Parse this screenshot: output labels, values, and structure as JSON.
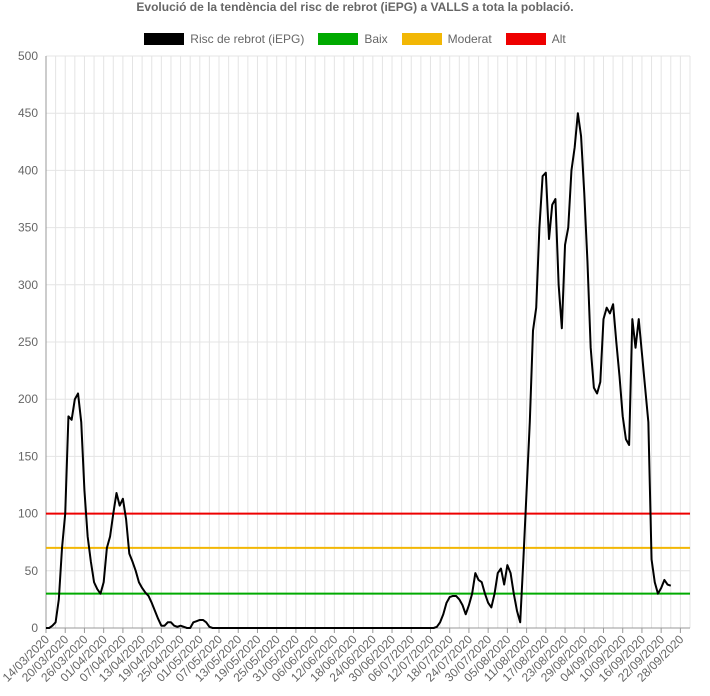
{
  "chart_data": {
    "type": "line",
    "title": "Evolució de la tendència del risc de rebrot (iEPG) a VALLS a tota la població.",
    "xlabel": "",
    "ylabel": "",
    "ylim": [
      0,
      500
    ],
    "yticks": [
      0,
      50,
      100,
      150,
      200,
      250,
      300,
      350,
      400,
      450,
      500
    ],
    "grid": true,
    "legend_position": "top",
    "x_tick_labels": [
      "14/03/2020",
      "20/03/2020",
      "26/03/2020",
      "01/04/2020",
      "07/04/2020",
      "13/04/2020",
      "19/04/2020",
      "25/04/2020",
      "01/05/2020",
      "07/05/2020",
      "13/05/2020",
      "19/05/2020",
      "25/05/2020",
      "31/05/2020",
      "06/06/2020",
      "12/06/2020",
      "18/06/2020",
      "24/06/2020",
      "30/06/2020",
      "06/07/2020",
      "12/07/2020",
      "18/07/2020",
      "24/07/2020",
      "30/07/2020",
      "05/08/2020",
      "11/08/2020",
      "17/08/2020",
      "23/08/2020",
      "29/08/2020",
      "04/09/2020",
      "10/09/2020",
      "16/09/2020",
      "22/09/2020",
      "28/09/2020"
    ],
    "series": [
      {
        "name": "Risc de rebrot (iEPG)",
        "color": "#000000",
        "points": [
          [
            0,
            0
          ],
          [
            1,
            0
          ],
          [
            2,
            2
          ],
          [
            3,
            5
          ],
          [
            4,
            25
          ],
          [
            5,
            70
          ],
          [
            6,
            100
          ],
          [
            7,
            185
          ],
          [
            8,
            182
          ],
          [
            9,
            200
          ],
          [
            10,
            205
          ],
          [
            11,
            180
          ],
          [
            12,
            120
          ],
          [
            13,
            80
          ],
          [
            14,
            58
          ],
          [
            15,
            40
          ],
          [
            16,
            34
          ],
          [
            17,
            30
          ],
          [
            18,
            40
          ],
          [
            19,
            70
          ],
          [
            20,
            80
          ],
          [
            21,
            100
          ],
          [
            22,
            118
          ],
          [
            23,
            107
          ],
          [
            24,
            113
          ],
          [
            25,
            95
          ],
          [
            26,
            65
          ],
          [
            27,
            58
          ],
          [
            28,
            50
          ],
          [
            29,
            40
          ],
          [
            30,
            35
          ],
          [
            31,
            31
          ],
          [
            32,
            28
          ],
          [
            33,
            22
          ],
          [
            34,
            15
          ],
          [
            35,
            8
          ],
          [
            36,
            2
          ],
          [
            37,
            2
          ],
          [
            38,
            5
          ],
          [
            39,
            5
          ],
          [
            40,
            2
          ],
          [
            41,
            1
          ],
          [
            42,
            2
          ],
          [
            43,
            1
          ],
          [
            44,
            0
          ],
          [
            45,
            0
          ],
          [
            46,
            5
          ],
          [
            47,
            6
          ],
          [
            48,
            7
          ],
          [
            49,
            7
          ],
          [
            50,
            5
          ],
          [
            51,
            1
          ],
          [
            52,
            0
          ],
          [
            53,
            0
          ],
          [
            54,
            0
          ],
          [
            55,
            0
          ],
          [
            56,
            0
          ],
          [
            57,
            0
          ],
          [
            58,
            0
          ],
          [
            59,
            0
          ],
          [
            60,
            0
          ],
          [
            61,
            0
          ],
          [
            62,
            0
          ],
          [
            63,
            0
          ],
          [
            64,
            0
          ],
          [
            65,
            0
          ],
          [
            66,
            0
          ],
          [
            67,
            0
          ],
          [
            68,
            0
          ],
          [
            69,
            0
          ],
          [
            70,
            0
          ],
          [
            71,
            0
          ],
          [
            72,
            0
          ],
          [
            73,
            0
          ],
          [
            74,
            0
          ],
          [
            75,
            0
          ],
          [
            76,
            0
          ],
          [
            77,
            0
          ],
          [
            78,
            0
          ],
          [
            79,
            0
          ],
          [
            80,
            0
          ],
          [
            81,
            0
          ],
          [
            82,
            0
          ],
          [
            83,
            0
          ],
          [
            84,
            0
          ],
          [
            85,
            0
          ],
          [
            86,
            0
          ],
          [
            87,
            0
          ],
          [
            88,
            0
          ],
          [
            89,
            0
          ],
          [
            90,
            0
          ],
          [
            91,
            0
          ],
          [
            92,
            0
          ],
          [
            93,
            0
          ],
          [
            94,
            0
          ],
          [
            95,
            0
          ],
          [
            96,
            0
          ],
          [
            97,
            0
          ],
          [
            98,
            0
          ],
          [
            99,
            0
          ],
          [
            100,
            0
          ],
          [
            101,
            0
          ],
          [
            102,
            0
          ],
          [
            103,
            0
          ],
          [
            104,
            0
          ],
          [
            105,
            0
          ],
          [
            106,
            0
          ],
          [
            107,
            0
          ],
          [
            108,
            0
          ],
          [
            109,
            0
          ],
          [
            110,
            0
          ],
          [
            111,
            0
          ],
          [
            112,
            0
          ],
          [
            113,
            0
          ],
          [
            114,
            0
          ],
          [
            115,
            0
          ],
          [
            116,
            0
          ],
          [
            117,
            0
          ],
          [
            118,
            0
          ],
          [
            119,
            0
          ],
          [
            120,
            0
          ],
          [
            121,
            0
          ],
          [
            122,
            1
          ],
          [
            123,
            5
          ],
          [
            124,
            12
          ],
          [
            125,
            22
          ],
          [
            126,
            27
          ],
          [
            127,
            28
          ],
          [
            128,
            28
          ],
          [
            129,
            25
          ],
          [
            130,
            20
          ],
          [
            131,
            12
          ],
          [
            132,
            20
          ],
          [
            133,
            30
          ],
          [
            134,
            48
          ],
          [
            135,
            42
          ],
          [
            136,
            40
          ],
          [
            137,
            30
          ],
          [
            138,
            22
          ],
          [
            139,
            18
          ],
          [
            140,
            30
          ],
          [
            141,
            48
          ],
          [
            142,
            52
          ],
          [
            143,
            38
          ],
          [
            144,
            55
          ],
          [
            145,
            48
          ],
          [
            146,
            30
          ],
          [
            147,
            15
          ],
          [
            148,
            5
          ],
          [
            149,
            60
          ],
          [
            150,
            120
          ],
          [
            151,
            180
          ],
          [
            152,
            260
          ],
          [
            153,
            280
          ],
          [
            154,
            350
          ],
          [
            155,
            395
          ],
          [
            156,
            398
          ],
          [
            157,
            340
          ],
          [
            158,
            370
          ],
          [
            159,
            375
          ],
          [
            160,
            300
          ],
          [
            161,
            262
          ],
          [
            162,
            335
          ],
          [
            163,
            350
          ],
          [
            164,
            400
          ],
          [
            165,
            420
          ],
          [
            166,
            450
          ],
          [
            167,
            430
          ],
          [
            168,
            380
          ],
          [
            169,
            320
          ],
          [
            170,
            245
          ],
          [
            171,
            210
          ],
          [
            172,
            205
          ],
          [
            173,
            215
          ],
          [
            174,
            270
          ],
          [
            175,
            280
          ],
          [
            176,
            275
          ],
          [
            177,
            283
          ],
          [
            178,
            250
          ],
          [
            179,
            220
          ],
          [
            180,
            185
          ],
          [
            181,
            165
          ],
          [
            182,
            160
          ],
          [
            183,
            270
          ],
          [
            184,
            245
          ],
          [
            185,
            270
          ],
          [
            186,
            240
          ],
          [
            187,
            210
          ],
          [
            188,
            180
          ],
          [
            189,
            60
          ],
          [
            190,
            40
          ],
          [
            191,
            30
          ],
          [
            192,
            35
          ],
          [
            193,
            42
          ],
          [
            194,
            38
          ],
          [
            195,
            37
          ]
        ]
      },
      {
        "name": "Baix",
        "color": "#00aa00",
        "value": 30
      },
      {
        "name": "Moderat",
        "color": "#f2b705",
        "value": 70
      },
      {
        "name": "Alt",
        "color": "#ee0000",
        "value": 100
      }
    ]
  }
}
